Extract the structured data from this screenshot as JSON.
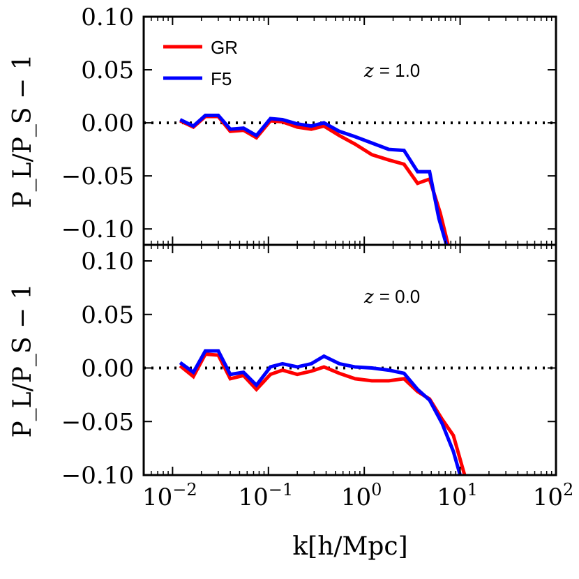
{
  "chart_data": {
    "type": "line",
    "xscale": "log",
    "xlim": [
      0.005,
      100
    ],
    "xlabel": "k[h/Mpc]",
    "ylabel": "P_L/P_S − 1",
    "x_ticks": [
      {
        "value": 0.01,
        "base": "10",
        "exp": "−2"
      },
      {
        "value": 0.1,
        "base": "10",
        "exp": "−1"
      },
      {
        "value": 1,
        "base": "10",
        "exp": "0"
      },
      {
        "value": 10,
        "base": "10",
        "exp": "1"
      },
      {
        "value": 100,
        "base": "10",
        "exp": "2"
      }
    ],
    "legend": {
      "location": "upper-left",
      "entries": [
        {
          "name": "GR",
          "color": "#ff0000"
        },
        {
          "name": "F5",
          "color": "#0000ff"
        }
      ]
    },
    "reference_line": {
      "y": 0.0,
      "style": "dotted",
      "color": "#000000"
    },
    "panels": [
      {
        "annotation_var": "z",
        "annotation_rest": "= 1.0",
        "ylim": [
          -0.115,
          0.1
        ],
        "y_ticks": [
          {
            "value": 0.1,
            "label": "0.10"
          },
          {
            "value": 0.05,
            "label": "0.05"
          },
          {
            "value": 0.0,
            "label": "0.00"
          },
          {
            "value": -0.05,
            "label": "−0.05"
          },
          {
            "value": -0.1,
            "label": "−0.10"
          }
        ],
        "series": [
          {
            "name": "GR",
            "color": "#ff0000",
            "x": [
              0.012,
              0.0165,
              0.022,
              0.03,
              0.04,
              0.055,
              0.075,
              0.105,
              0.14,
              0.2,
              0.28,
              0.38,
              0.55,
              0.8,
              1.2,
              1.8,
              2.6,
              3.6,
              4.8,
              6.2,
              7.5
            ],
            "y": [
              0.002,
              -0.004,
              0.006,
              0.006,
              -0.008,
              -0.007,
              -0.014,
              0.002,
              0.001,
              -0.004,
              -0.006,
              -0.003,
              -0.012,
              -0.02,
              -0.03,
              -0.035,
              -0.039,
              -0.057,
              -0.053,
              -0.085,
              -0.115
            ]
          },
          {
            "name": "F5",
            "color": "#0000ff",
            "x": [
              0.012,
              0.0165,
              0.022,
              0.03,
              0.04,
              0.055,
              0.075,
              0.105,
              0.14,
              0.2,
              0.28,
              0.38,
              0.55,
              0.8,
              1.2,
              1.8,
              2.6,
              3.6,
              4.8,
              6.0,
              7.2
            ],
            "y": [
              0.003,
              -0.003,
              0.007,
              0.007,
              -0.006,
              -0.005,
              -0.012,
              0.004,
              0.003,
              -0.001,
              -0.003,
              0.0,
              -0.008,
              -0.013,
              -0.019,
              -0.025,
              -0.026,
              -0.046,
              -0.046,
              -0.09,
              -0.115
            ]
          }
        ]
      },
      {
        "annotation_var": "z",
        "annotation_rest": "= 0.0",
        "ylim": [
          -0.1,
          0.115
        ],
        "y_ticks": [
          {
            "value": 0.1,
            "label": "0.10"
          },
          {
            "value": 0.05,
            "label": "0.05"
          },
          {
            "value": 0.0,
            "label": "0.00"
          },
          {
            "value": -0.05,
            "label": "−0.05"
          },
          {
            "value": -0.1,
            "label": "−0.10"
          }
        ],
        "series": [
          {
            "name": "GR",
            "color": "#ff0000",
            "x": [
              0.012,
              0.0165,
              0.022,
              0.03,
              0.04,
              0.055,
              0.075,
              0.105,
              0.14,
              0.2,
              0.28,
              0.38,
              0.55,
              0.8,
              1.2,
              1.8,
              2.6,
              3.6,
              4.8,
              6.5,
              8.5,
              10.5,
              12.0
            ],
            "y": [
              0.002,
              -0.008,
              0.013,
              0.012,
              -0.01,
              -0.007,
              -0.02,
              -0.006,
              -0.002,
              -0.006,
              -0.003,
              0.001,
              -0.005,
              -0.01,
              -0.012,
              -0.012,
              -0.01,
              -0.022,
              -0.029,
              -0.048,
              -0.063,
              -0.092,
              -0.11
            ]
          },
          {
            "name": "F5",
            "color": "#0000ff",
            "x": [
              0.012,
              0.0165,
              0.022,
              0.03,
              0.04,
              0.055,
              0.075,
              0.105,
              0.14,
              0.2,
              0.28,
              0.38,
              0.55,
              0.8,
              1.2,
              1.8,
              2.6,
              3.6,
              4.8,
              6.5,
              8.5,
              10.0,
              11.5
            ],
            "y": [
              0.005,
              -0.004,
              0.016,
              0.016,
              -0.006,
              -0.004,
              -0.016,
              0.001,
              0.004,
              0.001,
              0.004,
              0.011,
              0.004,
              0.001,
              0.0,
              -0.002,
              -0.005,
              -0.02,
              -0.03,
              -0.052,
              -0.078,
              -0.1,
              -0.11
            ]
          }
        ]
      }
    ]
  }
}
